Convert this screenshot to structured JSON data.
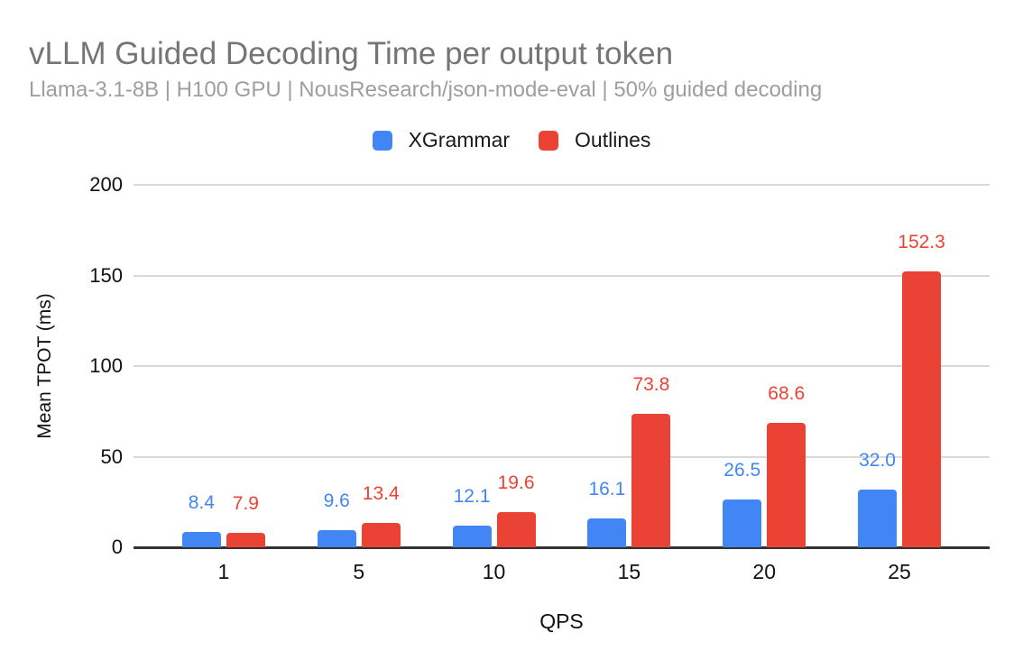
{
  "title": "vLLM Guided Decoding Time per output token",
  "subtitle": "Llama-3.1-8B | H100 GPU | NousResearch/json-mode-eval | 50% guided decoding",
  "legend": [
    {
      "label": "XGrammar",
      "color": "#4285F4"
    },
    {
      "label": "Outlines",
      "color": "#EA4335"
    }
  ],
  "colors": {
    "xgrammar_blue": "#4285F4",
    "outlines_red": "#EA4335",
    "gridline": "#D9D9D9",
    "axis_line": "#333333",
    "title_text": "#757575",
    "subtitle_text": "#9E9E9E",
    "tick_text": "#111111"
  },
  "chart_data": {
    "type": "bar",
    "title": "vLLM Guided Decoding Time per output token",
    "subtitle": "Llama-3.1-8B | H100 GPU | NousResearch/json-mode-eval | 50% guided decoding",
    "categories": [
      "1",
      "5",
      "10",
      "15",
      "20",
      "25"
    ],
    "series": [
      {
        "name": "XGrammar",
        "color": "#4285F4",
        "values": [
          8.4,
          9.6,
          12.1,
          16.1,
          26.5,
          32.0
        ]
      },
      {
        "name": "Outlines",
        "color": "#EA4335",
        "values": [
          7.9,
          13.4,
          19.6,
          73.8,
          68.6,
          152.3
        ]
      }
    ],
    "xlabel": "QPS",
    "ylabel": "Mean TPOT (ms)",
    "ylim": [
      0,
      200
    ],
    "yticks": [
      0,
      50,
      100,
      150,
      200
    ],
    "grid": true,
    "legend_position": "top",
    "data_labels": true,
    "value_label_decimals": 1
  }
}
